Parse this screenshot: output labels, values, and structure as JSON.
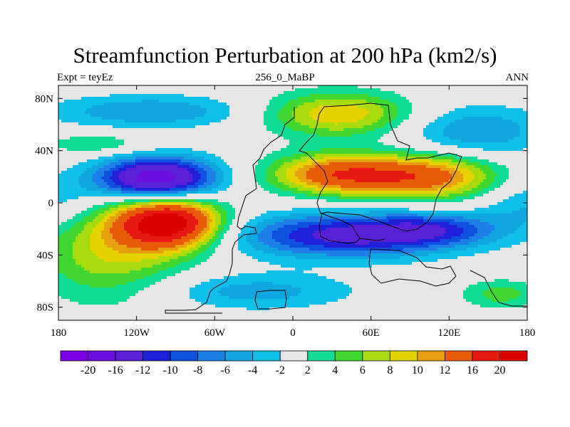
{
  "chart_data": {
    "type": "heatmap",
    "title": "Streamfunction Perturbation at 200 hPa (km2/s)",
    "subtitle_left": "Expt = teyEz",
    "subtitle_center": "256_0_MaBP",
    "subtitle_right": "ANN",
    "x_ticks": [
      "180",
      "120W",
      "60W",
      "0",
      "60E",
      "120E",
      "180"
    ],
    "x_tick_values": [
      -180,
      -120,
      -60,
      0,
      60,
      120,
      180
    ],
    "y_ticks": [
      "80N",
      "40N",
      "0",
      "40S",
      "80S"
    ],
    "y_tick_values": [
      80,
      40,
      0,
      -40,
      -80
    ],
    "xlim": [
      -180,
      180
    ],
    "ylim": [
      -90,
      90
    ],
    "levels": [
      "-20",
      "-16",
      "-12",
      "-10",
      "-8",
      "-6",
      "-4",
      "-2",
      "2",
      "4",
      "6",
      "8",
      "10",
      "12",
      "16",
      "20"
    ],
    "level_values": [
      -20,
      -16,
      -12,
      -10,
      -8,
      -6,
      -4,
      -2,
      2,
      4,
      6,
      8,
      10,
      12,
      16,
      20
    ],
    "colors": [
      "#7a00e6",
      "#6c10e0",
      "#5a20d8",
      "#2020d8",
      "#1050e0",
      "#1c7ee6",
      "#10a6e0",
      "#10c0e8",
      "#e6e6e6",
      "#10dc96",
      "#40d830",
      "#a8dc10",
      "#e6d200",
      "#e6a010",
      "#e65a0a",
      "#e61a10",
      "#dc0000"
    ],
    "features": [
      {
        "lon": -105,
        "lat": 18,
        "amp": -20,
        "sx": 32,
        "sy": 12
      },
      {
        "lon": -95,
        "lat": -15,
        "amp": 22,
        "sx": 28,
        "sy": 14
      },
      {
        "lon": -140,
        "lat": -35,
        "amp": 8,
        "sx": 40,
        "sy": 28
      },
      {
        "lon": -110,
        "lat": 70,
        "amp": -6,
        "sx": 55,
        "sy": 9
      },
      {
        "lon": -150,
        "lat": 45,
        "amp": 4,
        "sx": 30,
        "sy": 6
      },
      {
        "lon": -30,
        "lat": -68,
        "amp": -5,
        "sx": 55,
        "sy": 10
      },
      {
        "lon": 40,
        "lat": -25,
        "amp": -13,
        "sx": 60,
        "sy": 12
      },
      {
        "lon": 110,
        "lat": -20,
        "amp": -7,
        "sx": 35,
        "sy": 9
      },
      {
        "lon": 30,
        "lat": 22,
        "amp": 13,
        "sx": 35,
        "sy": 11
      },
      {
        "lon": 100,
        "lat": 20,
        "amp": 14,
        "sx": 40,
        "sy": 12
      },
      {
        "lon": 35,
        "lat": 68,
        "amp": 10,
        "sx": 40,
        "sy": 12
      },
      {
        "lon": 140,
        "lat": 55,
        "amp": -6,
        "sx": 40,
        "sy": 14
      },
      {
        "lon": 180,
        "lat": 0,
        "amp": -4,
        "sx": 25,
        "sy": 15
      },
      {
        "lon": -180,
        "lat": 0,
        "amp": -4,
        "sx": 25,
        "sy": 15
      },
      {
        "lon": 160,
        "lat": -70,
        "amp": 5,
        "sx": 22,
        "sy": 8
      }
    ]
  }
}
